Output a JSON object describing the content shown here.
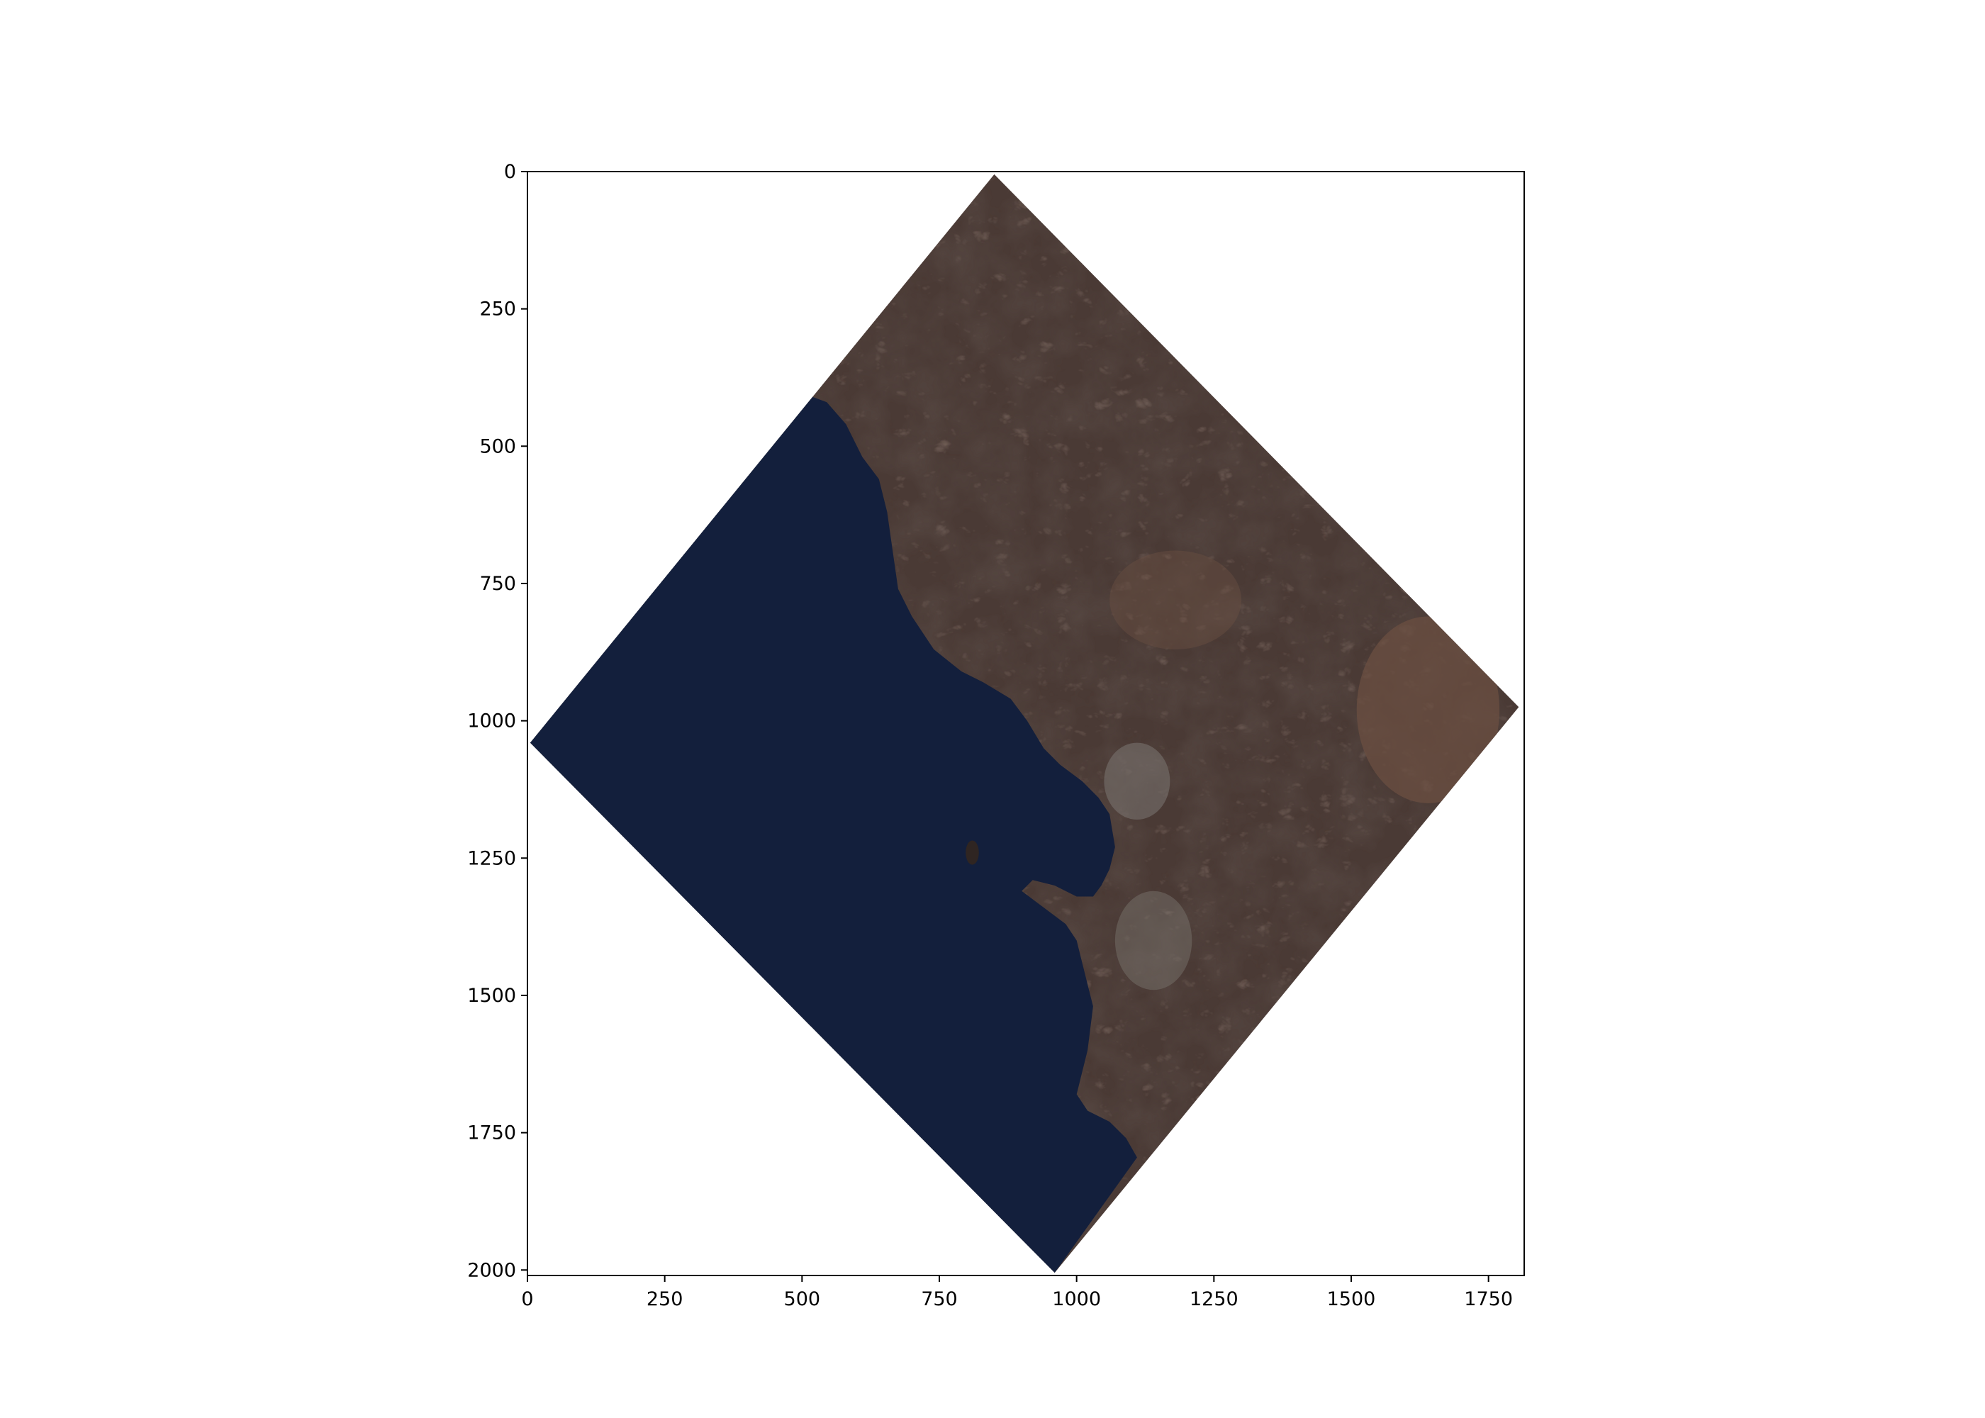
{
  "image": {
    "subject": "satellite-scene-coastline",
    "colors": {
      "background": "#ffffff",
      "frame": "#000000",
      "water": "#131f3c",
      "land": "#4a3a35",
      "land_dark": "#2f2522",
      "land_light": "#6b4f42",
      "urban": "#7c7772"
    }
  },
  "chart_data": {
    "type": "image",
    "xlabel": "",
    "ylabel": "",
    "xlim": [
      0,
      1815
    ],
    "ylim": [
      2010,
      0
    ],
    "x_ticks": [
      {
        "value": 0,
        "label": "0"
      },
      {
        "value": 250,
        "label": "250"
      },
      {
        "value": 500,
        "label": "500"
      },
      {
        "value": 750,
        "label": "750"
      },
      {
        "value": 1000,
        "label": "1000"
      },
      {
        "value": 1250,
        "label": "1250"
      },
      {
        "value": 1500,
        "label": "1500"
      },
      {
        "value": 1750,
        "label": "1750"
      }
    ],
    "y_ticks": [
      {
        "value": 0,
        "label": "0"
      },
      {
        "value": 250,
        "label": "250"
      },
      {
        "value": 500,
        "label": "500"
      },
      {
        "value": 750,
        "label": "750"
      },
      {
        "value": 1000,
        "label": "1000"
      },
      {
        "value": 1250,
        "label": "1250"
      },
      {
        "value": 1500,
        "label": "1500"
      },
      {
        "value": 1750,
        "label": "1750"
      },
      {
        "value": 2000,
        "label": "2000"
      }
    ],
    "scene_corners": [
      {
        "name": "top",
        "x": 850,
        "y": 5
      },
      {
        "name": "right",
        "x": 1805,
        "y": 975
      },
      {
        "name": "bottom",
        "x": 960,
        "y": 2005
      },
      {
        "name": "left",
        "x": 5,
        "y": 1040
      }
    ]
  }
}
